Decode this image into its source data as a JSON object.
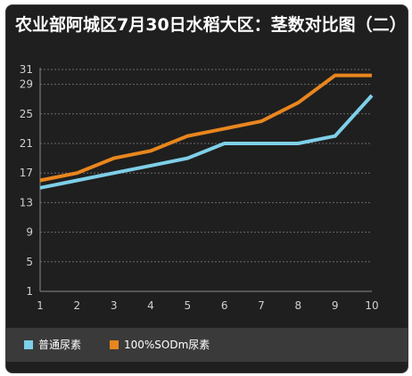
{
  "chart_data": {
    "type": "line",
    "title": "农业部阿城区7月30日水稻大区：茎数对比图（二）",
    "xlabel": "",
    "ylabel": "",
    "x": [
      1,
      2,
      3,
      4,
      5,
      6,
      7,
      8,
      9,
      10
    ],
    "y_ticks": [
      1,
      5,
      9,
      13,
      17,
      21,
      25,
      29,
      31
    ],
    "ylim": [
      1,
      31
    ],
    "grid": true,
    "legend_position": "bottom-left",
    "series": [
      {
        "name": "普通尿素",
        "color": "#7ecfe8",
        "values": [
          15,
          16,
          17,
          18,
          19,
          21,
          21,
          21,
          22,
          27.5
        ]
      },
      {
        "name": "100%SODm尿素",
        "color": "#e8861e",
        "values": [
          16,
          17,
          19,
          20,
          22,
          23,
          24,
          26.5,
          30.2,
          30.2
        ]
      }
    ]
  }
}
